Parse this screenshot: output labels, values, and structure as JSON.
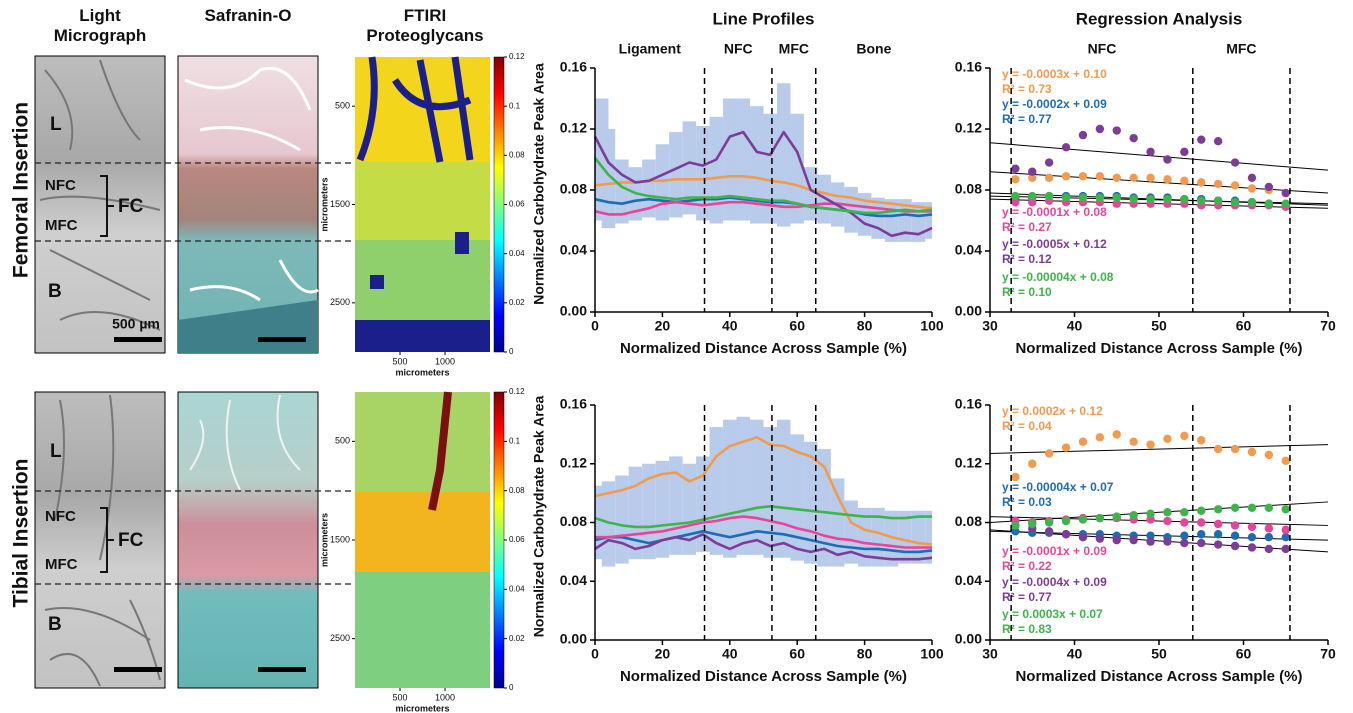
{
  "panels": {
    "headers": [
      "Light Micrograph",
      "Safranin-O",
      "FTIRI Proteoglycans"
    ],
    "rows": [
      {
        "label": "Femoral Insertion",
        "zones": [
          "L",
          "NFC",
          "MFC",
          "FC",
          "B"
        ],
        "scale_bar": "500 µm"
      },
      {
        "label": "Tibial Insertion",
        "zones": [
          "L",
          "NFC",
          "MFC",
          "FC",
          "B"
        ]
      }
    ],
    "ftiri": {
      "axis_label": "micrometers",
      "xlim": [
        0,
        1500
      ],
      "ylim": [
        0,
        3000
      ],
      "xticks": [
        500,
        1000
      ],
      "yticks": [
        500,
        1500,
        2500
      ],
      "clim": [
        0,
        0.12
      ],
      "colorbar_ticks": [
        0,
        0.02,
        0.04,
        0.06,
        0.08,
        0.1,
        0.12
      ]
    }
  },
  "chart_data": [
    {
      "type": "line",
      "title": "Line Profiles",
      "xlabel": "Normalized Distance Across Sample (%)",
      "ylabel": "Normalized Carbohydrate Peak Area",
      "xlim": [
        0,
        100
      ],
      "ylim": [
        0,
        0.16
      ],
      "xticks": [
        0,
        20,
        40,
        60,
        80,
        100
      ],
      "yticks": [
        {
          "value": 0,
          "label": "0.00"
        },
        0.04,
        0.08,
        0.12,
        0.16
      ],
      "vlines": [
        32.5,
        52.5,
        65.5
      ],
      "regions": [
        "Ligament",
        "NFC",
        "MFC",
        "Bone"
      ],
      "x": [
        0,
        4,
        8,
        12,
        16,
        20,
        24,
        28,
        32,
        36,
        40,
        44,
        48,
        52,
        56,
        60,
        64,
        68,
        72,
        76,
        80,
        84,
        88,
        92,
        96,
        100
      ],
      "band": {
        "color": "#b8cbeb",
        "lower": [
          0.06,
          0.055,
          0.058,
          0.06,
          0.062,
          0.06,
          0.062,
          0.064,
          0.06,
          0.058,
          0.06,
          0.06,
          0.058,
          0.058,
          0.056,
          0.058,
          0.06,
          0.058,
          0.056,
          0.052,
          0.05,
          0.048,
          0.046,
          0.046,
          0.046,
          0.048
        ],
        "upper": [
          0.14,
          0.12,
          0.1,
          0.095,
          0.1,
          0.11,
          0.118,
          0.125,
          0.122,
          0.128,
          0.14,
          0.14,
          0.135,
          0.13,
          0.15,
          0.13,
          0.095,
          0.09,
          0.085,
          0.082,
          0.078,
          0.075,
          0.074,
          0.074,
          0.072,
          0.072
        ]
      },
      "series": [
        {
          "color": "#f39a4c",
          "values": [
            0.083,
            0.084,
            0.085,
            0.085,
            0.086,
            0.086,
            0.087,
            0.087,
            0.087,
            0.088,
            0.089,
            0.089,
            0.088,
            0.086,
            0.085,
            0.083,
            0.08,
            0.078,
            0.076,
            0.075,
            0.073,
            0.072,
            0.071,
            0.07,
            0.069,
            0.068
          ]
        },
        {
          "color": "#1c6db6",
          "values": [
            0.074,
            0.072,
            0.071,
            0.073,
            0.074,
            0.073,
            0.072,
            0.073,
            0.074,
            0.074,
            0.075,
            0.074,
            0.073,
            0.072,
            0.072,
            0.071,
            0.069,
            0.068,
            0.067,
            0.066,
            0.064,
            0.063,
            0.063,
            0.064,
            0.063,
            0.064
          ]
        },
        {
          "color": "#e8449a",
          "values": [
            0.066,
            0.064,
            0.064,
            0.066,
            0.068,
            0.071,
            0.072,
            0.071,
            0.07,
            0.071,
            0.072,
            0.072,
            0.071,
            0.07,
            0.069,
            0.069,
            0.07,
            0.071,
            0.071,
            0.07,
            0.069,
            0.068,
            0.067,
            0.066,
            0.066,
            0.066
          ]
        },
        {
          "color": "#7d3c98",
          "values": [
            0.115,
            0.098,
            0.09,
            0.085,
            0.086,
            0.09,
            0.094,
            0.098,
            0.096,
            0.1,
            0.115,
            0.118,
            0.105,
            0.103,
            0.118,
            0.105,
            0.08,
            0.075,
            0.07,
            0.065,
            0.058,
            0.055,
            0.05,
            0.052,
            0.051,
            0.055
          ]
        },
        {
          "color": "#3db54a",
          "values": [
            0.101,
            0.09,
            0.082,
            0.078,
            0.076,
            0.075,
            0.074,
            0.075,
            0.075,
            0.075,
            0.076,
            0.075,
            0.074,
            0.073,
            0.073,
            0.071,
            0.069,
            0.068,
            0.067,
            0.066,
            0.065,
            0.065,
            0.066,
            0.067,
            0.066,
            0.067
          ]
        }
      ]
    },
    {
      "type": "scatter",
      "title": "Regression Analysis",
      "xlabel": "Normalized Distance Across Sample (%)",
      "xlim": [
        30,
        70
      ],
      "ylim": [
        0,
        0.16
      ],
      "xticks": [
        30,
        40,
        50,
        60,
        70
      ],
      "yticks": [
        {
          "value": 0,
          "label": "0.00"
        },
        0.04,
        0.08,
        0.12,
        0.16
      ],
      "vlines": [
        32.5,
        54,
        65.5
      ],
      "regions": [
        "NFC",
        "MFC"
      ],
      "x": [
        33,
        35,
        37,
        39,
        41,
        43,
        45,
        47,
        49,
        51,
        53,
        55,
        57,
        59,
        61,
        63,
        65
      ],
      "series": [
        {
          "color": "#f39a4c",
          "equation": "y = -0.0003x + 0.10",
          "r2": "R² = 0.73",
          "fit": [
            0.092,
            0.078
          ],
          "values": [
            0.087,
            0.088,
            0.088,
            0.089,
            0.089,
            0.089,
            0.088,
            0.088,
            0.088,
            0.087,
            0.086,
            0.085,
            0.084,
            0.083,
            0.081,
            0.08,
            0.078
          ]
        },
        {
          "color": "#1c6db6",
          "equation": "y = -0.0002x + 0.09",
          "r2": "R² = 0.77",
          "fit": [
            0.078,
            0.07
          ],
          "values": [
            0.075,
            0.075,
            0.076,
            0.076,
            0.076,
            0.076,
            0.076,
            0.075,
            0.075,
            0.075,
            0.074,
            0.074,
            0.073,
            0.073,
            0.072,
            0.071,
            0.07
          ]
        },
        {
          "color": "#e8449a",
          "equation": "y = -0.0001x + 0.08",
          "r2": "R² = 0.27",
          "fit": [
            0.074,
            0.068
          ],
          "values": [
            0.072,
            0.072,
            0.073,
            0.072,
            0.072,
            0.072,
            0.071,
            0.071,
            0.071,
            0.071,
            0.071,
            0.07,
            0.07,
            0.07,
            0.07,
            0.07,
            0.069
          ]
        },
        {
          "color": "#7d3c98",
          "equation": "y = -0.0005x + 0.12",
          "r2": "R² = 0.12",
          "fit": [
            0.111,
            0.093
          ],
          "values": [
            0.094,
            0.092,
            0.098,
            0.108,
            0.116,
            0.12,
            0.119,
            0.114,
            0.105,
            0.1,
            0.105,
            0.113,
            0.112,
            0.098,
            0.088,
            0.082,
            0.078
          ]
        },
        {
          "color": "#3db54a",
          "equation": "y = -0.00004x + 0.08",
          "r2": "R² = 0.10",
          "fit": [
            0.076,
            0.071
          ],
          "values": [
            0.076,
            0.076,
            0.076,
            0.075,
            0.075,
            0.075,
            0.075,
            0.074,
            0.074,
            0.074,
            0.074,
            0.073,
            0.073,
            0.072,
            0.072,
            0.071,
            0.071
          ]
        }
      ]
    },
    {
      "type": "line",
      "xlabel": "Normalized Distance Across Sample (%)",
      "ylabel": "Normalized Carbohydrate Peak Area",
      "xlim": [
        0,
        100
      ],
      "ylim": [
        0,
        0.16
      ],
      "xticks": [
        0,
        20,
        40,
        60,
        80,
        100
      ],
      "yticks": [
        {
          "value": 0,
          "label": "0.00"
        },
        0.04,
        0.08,
        0.12,
        0.16
      ],
      "vlines": [
        32.5,
        52.5,
        65.5
      ],
      "x": [
        0,
        4,
        8,
        12,
        16,
        20,
        24,
        28,
        32,
        36,
        40,
        44,
        48,
        52,
        56,
        60,
        64,
        68,
        72,
        76,
        80,
        84,
        88,
        92,
        96,
        100
      ],
      "band": {
        "color": "#b8cbeb",
        "lower": [
          0.055,
          0.05,
          0.052,
          0.055,
          0.055,
          0.056,
          0.058,
          0.058,
          0.06,
          0.058,
          0.056,
          0.058,
          0.058,
          0.056,
          0.056,
          0.054,
          0.052,
          0.05,
          0.05,
          0.052,
          0.05,
          0.05,
          0.05,
          0.052,
          0.052,
          0.052
        ],
        "upper": [
          0.105,
          0.108,
          0.112,
          0.118,
          0.12,
          0.122,
          0.125,
          0.12,
          0.125,
          0.145,
          0.15,
          0.152,
          0.15,
          0.145,
          0.15,
          0.14,
          0.135,
          0.13,
          0.11,
          0.095,
          0.09,
          0.09,
          0.088,
          0.088,
          0.088,
          0.088
        ]
      },
      "series": [
        {
          "color": "#f39a4c",
          "values": [
            0.098,
            0.1,
            0.102,
            0.105,
            0.11,
            0.113,
            0.114,
            0.108,
            0.112,
            0.125,
            0.132,
            0.135,
            0.138,
            0.133,
            0.132,
            0.128,
            0.125,
            0.118,
            0.098,
            0.08,
            0.075,
            0.073,
            0.07,
            0.068,
            0.066,
            0.065
          ]
        },
        {
          "color": "#1c6db6",
          "values": [
            0.068,
            0.07,
            0.07,
            0.068,
            0.066,
            0.068,
            0.07,
            0.072,
            0.074,
            0.072,
            0.07,
            0.072,
            0.074,
            0.073,
            0.072,
            0.07,
            0.068,
            0.066,
            0.064,
            0.063,
            0.062,
            0.062,
            0.061,
            0.06,
            0.06,
            0.061
          ]
        },
        {
          "color": "#e8449a",
          "values": [
            0.07,
            0.07,
            0.071,
            0.072,
            0.073,
            0.074,
            0.076,
            0.078,
            0.08,
            0.081,
            0.083,
            0.084,
            0.083,
            0.081,
            0.079,
            0.076,
            0.074,
            0.071,
            0.069,
            0.068,
            0.066,
            0.065,
            0.064,
            0.063,
            0.063,
            0.063
          ]
        },
        {
          "color": "#7d3c98",
          "values": [
            0.062,
            0.068,
            0.066,
            0.062,
            0.064,
            0.068,
            0.07,
            0.068,
            0.072,
            0.066,
            0.062,
            0.066,
            0.068,
            0.064,
            0.066,
            0.062,
            0.06,
            0.062,
            0.058,
            0.06,
            0.057,
            0.056,
            0.055,
            0.055,
            0.055,
            0.056
          ]
        },
        {
          "color": "#3db54a",
          "values": [
            0.083,
            0.08,
            0.078,
            0.077,
            0.077,
            0.078,
            0.079,
            0.08,
            0.082,
            0.084,
            0.086,
            0.088,
            0.09,
            0.091,
            0.09,
            0.089,
            0.088,
            0.087,
            0.086,
            0.085,
            0.084,
            0.084,
            0.083,
            0.083,
            0.084,
            0.084
          ]
        }
      ]
    },
    {
      "type": "scatter",
      "xlabel": "Normalized Distance Across Sample (%)",
      "xlim": [
        30,
        70
      ],
      "ylim": [
        0,
        0.16
      ],
      "xticks": [
        30,
        40,
        50,
        60,
        70
      ],
      "yticks": [
        {
          "value": 0,
          "label": "0.00"
        },
        0.04,
        0.08,
        0.12,
        0.16
      ],
      "vlines": [
        32.5,
        54,
        65.5
      ],
      "x": [
        33,
        35,
        37,
        39,
        41,
        43,
        45,
        47,
        49,
        51,
        53,
        55,
        57,
        59,
        61,
        63,
        65
      ],
      "series": [
        {
          "color": "#f39a4c",
          "equation": "y = 0.0002x + 0.12",
          "r2": "R² = 0.04",
          "fit": [
            0.127,
            0.133
          ],
          "values": [
            0.111,
            0.12,
            0.127,
            0.131,
            0.135,
            0.138,
            0.14,
            0.135,
            0.133,
            0.137,
            0.139,
            0.136,
            0.13,
            0.13,
            0.128,
            0.126,
            0.122
          ]
        },
        {
          "color": "#1c6db6",
          "equation": "y = -0.00004x + 0.07",
          "r2": "R² = 0.03",
          "fit": [
            0.074,
            0.068
          ],
          "values": [
            0.074,
            0.073,
            0.073,
            0.072,
            0.072,
            0.072,
            0.071,
            0.071,
            0.071,
            0.07,
            0.071,
            0.072,
            0.072,
            0.071,
            0.07,
            0.07,
            0.07
          ]
        },
        {
          "color": "#e8449a",
          "equation": "y = -0.0001x + 0.09",
          "r2": "R² = 0.22",
          "fit": [
            0.084,
            0.078
          ],
          "values": [
            0.081,
            0.08,
            0.081,
            0.082,
            0.083,
            0.083,
            0.083,
            0.082,
            0.082,
            0.081,
            0.08,
            0.08,
            0.079,
            0.078,
            0.077,
            0.076,
            0.075
          ]
        },
        {
          "color": "#7d3c98",
          "equation": "y = -0.0004x + 0.09",
          "r2": "R² = 0.77",
          "fit": [
            0.075,
            0.06
          ],
          "values": [
            0.078,
            0.076,
            0.074,
            0.072,
            0.07,
            0.069,
            0.068,
            0.068,
            0.067,
            0.067,
            0.066,
            0.066,
            0.065,
            0.064,
            0.063,
            0.062,
            0.062
          ]
        },
        {
          "color": "#3db54a",
          "equation": "y = 0.0003x + 0.07",
          "r2": "R² = 0.83",
          "fit": [
            0.08,
            0.094
          ],
          "values": [
            0.078,
            0.079,
            0.08,
            0.081,
            0.082,
            0.083,
            0.084,
            0.085,
            0.086,
            0.087,
            0.087,
            0.088,
            0.089,
            0.09,
            0.09,
            0.09,
            0.089
          ]
        }
      ]
    }
  ]
}
